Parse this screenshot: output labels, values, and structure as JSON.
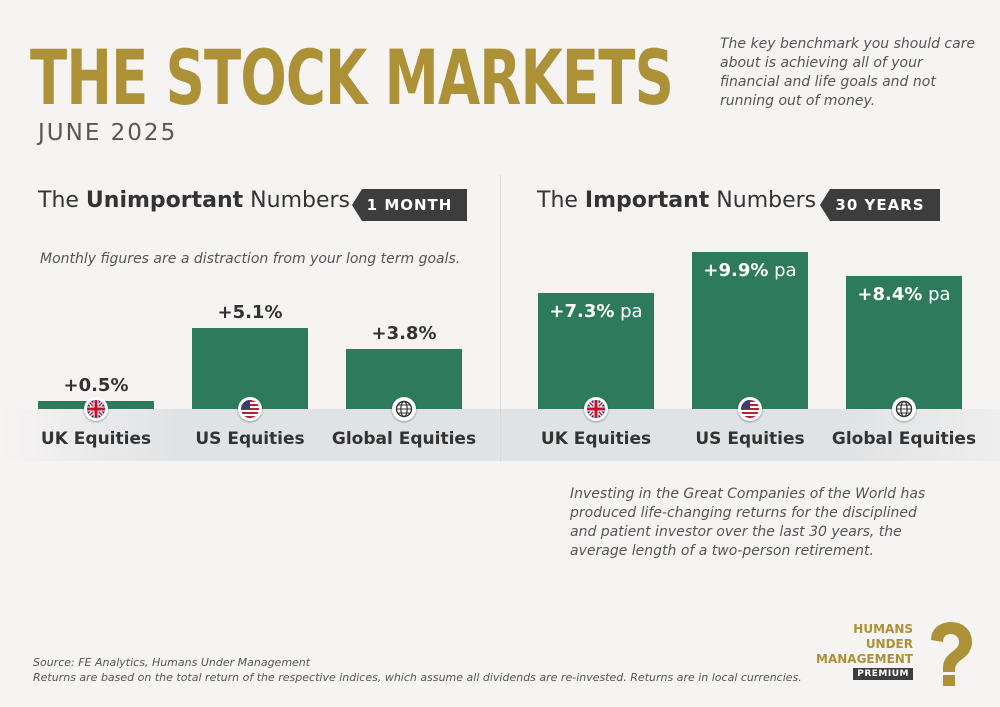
{
  "header": {
    "title": "THE STOCK MARKETS",
    "subtitle": "JUNE 2025",
    "intro": "The key benchmark you should care about is achieving all of your financial and life goals and not running out of money."
  },
  "left_section": {
    "heading_pre": "The ",
    "heading_bold": "Unimportant",
    "heading_post": " Numbers",
    "tag": "1 MONTH",
    "note": "Monthly figures are a distraction from your long term goals."
  },
  "right_section": {
    "heading_pre": "The ",
    "heading_bold": "Important",
    "heading_post": " Numbers",
    "tag": "30 YEARS",
    "note": "Investing in the Great Companies of the World has produced life-changing returns for the disciplined and patient investor over the last 30 years, the average length of a two-person retirement."
  },
  "chart_data": [
    {
      "type": "bar",
      "title": "The Unimportant Numbers – 1 Month",
      "categories": [
        "UK Equities",
        "US Equities",
        "Global Equities"
      ],
      "values": [
        0.5,
        5.1,
        3.8
      ],
      "labels": [
        "+0.5%",
        "+5.1%",
        "+3.8%"
      ],
      "unit": "%",
      "ylim": [
        0,
        5.1
      ]
    },
    {
      "type": "bar",
      "title": "The Important Numbers – 30 Years",
      "categories": [
        "UK Equities",
        "US Equities",
        "Global Equities"
      ],
      "values": [
        7.3,
        9.9,
        8.4
      ],
      "labels": [
        "+7.3%",
        "+9.9%",
        "+8.4%"
      ],
      "suffix": " pa",
      "unit": "% pa",
      "ylim": [
        0,
        9.9
      ]
    }
  ],
  "flags": [
    "uk-flag-icon",
    "us-flag-icon",
    "globe-icon"
  ],
  "footer": {
    "source": "Source: FE Analytics, Humans Under Management",
    "disclaimer": "Returns are based on the total return of the respective indices, which assume all dividends are re-invested. Returns are in local currencies."
  },
  "logo": {
    "line1": "HUMANS",
    "line2": "UNDER",
    "line3": "MANAGEMENT",
    "badge": "PREMIUM"
  },
  "colors": {
    "gold": "#ad9137",
    "bar": "#2e7a5d",
    "tag_bg": "#3d3d3d",
    "background": "#f6f3f3"
  }
}
